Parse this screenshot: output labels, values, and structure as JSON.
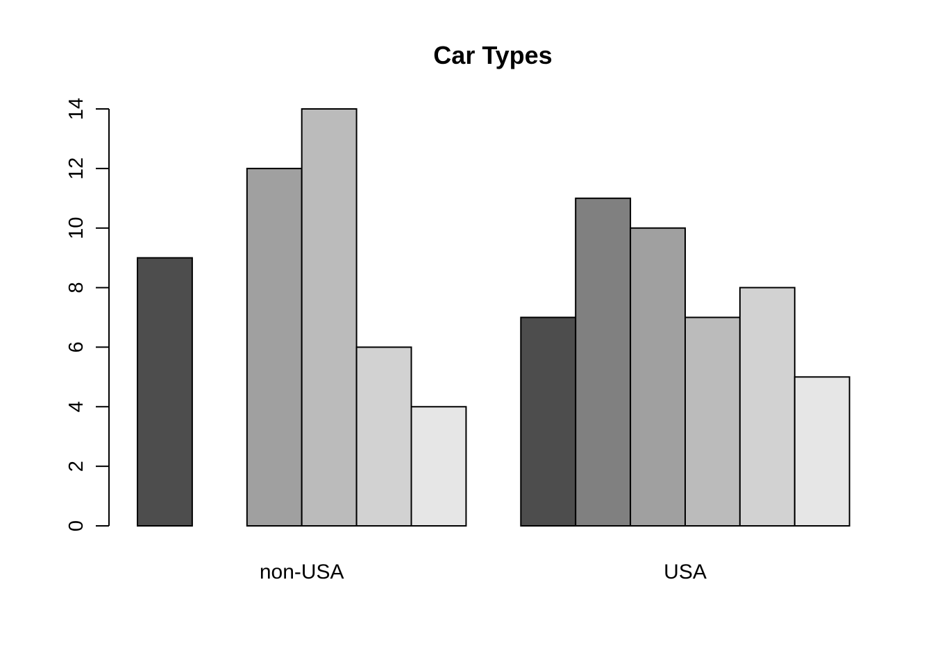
{
  "chart_data": {
    "type": "bar",
    "title": "Car Types",
    "xlabel": "",
    "ylabel": "",
    "categories": [
      "non-USA",
      "USA"
    ],
    "series": [
      {
        "values": [
          9,
          7
        ],
        "color": "#4d4d4d"
      },
      {
        "values": [
          0,
          11
        ],
        "color": "#808080"
      },
      {
        "values": [
          12,
          10
        ],
        "color": "#a0a0a0"
      },
      {
        "values": [
          14,
          7
        ],
        "color": "#bbbbbb"
      },
      {
        "values": [
          6,
          8
        ],
        "color": "#d2d2d2"
      },
      {
        "values": [
          4,
          5
        ],
        "color": "#e6e6e6"
      }
    ],
    "ylim": [
      0,
      14
    ],
    "yticks": [
      "0",
      "2",
      "4",
      "6",
      "8",
      "10",
      "12",
      "14"
    ],
    "grid": false,
    "legend": "none",
    "bar_border_color": "#000000"
  }
}
